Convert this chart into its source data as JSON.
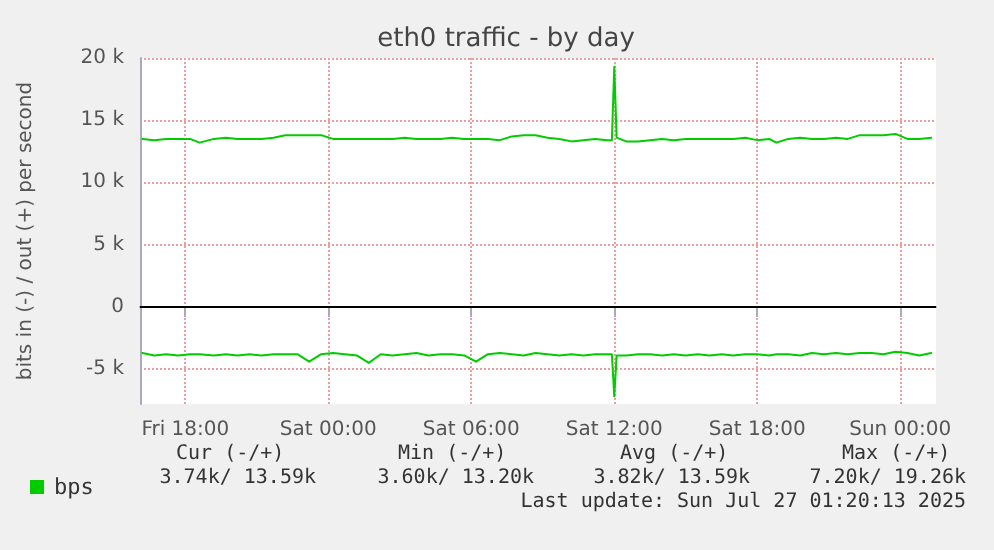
{
  "chart_data": {
    "type": "line",
    "title": "eth0 traffic - by day",
    "ylabel": "bits in (-) / out (+) per second",
    "x": [
      "2025-07-25T16:12",
      "2025-07-25T16:42",
      "2025-07-25T17:12",
      "2025-07-25T17:42",
      "2025-07-25T18:12",
      "2025-07-25T18:36",
      "2025-07-25T19:12",
      "2025-07-25T19:42",
      "2025-07-25T20:12",
      "2025-07-25T20:42",
      "2025-07-25T21:12",
      "2025-07-25T21:42",
      "2025-07-25T22:12",
      "2025-07-25T22:42",
      "2025-07-25T23:12",
      "2025-07-25T23:42",
      "2025-07-26T00:12",
      "2025-07-26T00:42",
      "2025-07-26T01:12",
      "2025-07-26T01:42",
      "2025-07-26T02:12",
      "2025-07-26T02:42",
      "2025-07-26T03:12",
      "2025-07-26T03:42",
      "2025-07-26T04:12",
      "2025-07-26T04:42",
      "2025-07-26T05:12",
      "2025-07-26T05:42",
      "2025-07-26T06:12",
      "2025-07-26T06:42",
      "2025-07-26T07:12",
      "2025-07-26T07:42",
      "2025-07-26T08:12",
      "2025-07-26T08:42",
      "2025-07-26T09:12",
      "2025-07-26T09:42",
      "2025-07-26T10:12",
      "2025-07-26T10:42",
      "2025-07-26T11:12",
      "2025-07-26T11:42",
      "2025-07-26T11:54",
      "2025-07-26T12:00",
      "2025-07-26T12:06",
      "2025-07-26T12:30",
      "2025-07-26T13:00",
      "2025-07-26T13:30",
      "2025-07-26T14:00",
      "2025-07-26T14:30",
      "2025-07-26T15:00",
      "2025-07-26T15:30",
      "2025-07-26T16:00",
      "2025-07-26T16:30",
      "2025-07-26T17:00",
      "2025-07-26T17:30",
      "2025-07-26T18:00",
      "2025-07-26T18:30",
      "2025-07-26T18:48",
      "2025-07-26T19:18",
      "2025-07-26T19:48",
      "2025-07-26T20:18",
      "2025-07-26T20:48",
      "2025-07-26T21:18",
      "2025-07-26T21:48",
      "2025-07-26T22:18",
      "2025-07-26T22:48",
      "2025-07-26T23:18",
      "2025-07-26T23:48",
      "2025-07-27T00:18",
      "2025-07-27T00:48",
      "2025-07-27T01:18"
    ],
    "series": [
      {
        "name": "bps",
        "color": "#00cc00",
        "values": [
          13500,
          13400,
          13500,
          13500,
          13500,
          13200,
          13500,
          13600,
          13500,
          13500,
          13500,
          13600,
          13800,
          13800,
          13800,
          13800,
          13500,
          13500,
          13500,
          13500,
          13500,
          13500,
          13600,
          13500,
          13500,
          13500,
          13600,
          13500,
          13500,
          13500,
          13400,
          13700,
          13800,
          13800,
          13600,
          13500,
          13300,
          13400,
          13500,
          13400,
          13400,
          19300,
          13600,
          13300,
          13300,
          13400,
          13500,
          13400,
          13500,
          13500,
          13500,
          13500,
          13500,
          13600,
          13400,
          13500,
          13200,
          13500,
          13600,
          13500,
          13500,
          13600,
          13500,
          13800,
          13800,
          13800,
          13900,
          13500,
          13500,
          13600
        ]
      },
      {
        "color": "#00cc00",
        "values": [
          -3700,
          -3900,
          -3800,
          -3900,
          -3800,
          -3800,
          -3900,
          -3800,
          -3900,
          -3800,
          -3900,
          -3800,
          -3800,
          -3800,
          -4400,
          -3800,
          -3700,
          -3800,
          -3900,
          -4500,
          -3800,
          -3900,
          -3800,
          -3700,
          -3900,
          -3800,
          -3800,
          -3900,
          -4400,
          -3800,
          -3700,
          -3800,
          -3900,
          -3700,
          -3800,
          -3900,
          -3800,
          -3900,
          -3800,
          -3800,
          -3800,
          -7200,
          -3900,
          -3900,
          -3800,
          -3800,
          -3900,
          -3800,
          -3900,
          -3800,
          -3900,
          -3800,
          -3900,
          -3800,
          -3800,
          -3900,
          -3800,
          -3800,
          -3900,
          -3700,
          -3800,
          -3700,
          -3800,
          -3700,
          -3700,
          -3800,
          -3600,
          -3700,
          -3900,
          -3700
        ]
      }
    ],
    "xlim": [
      "2025-07-25T16:06",
      "2025-07-27T01:30"
    ],
    "xticks": [
      {
        "value": "2025-07-25T18:00",
        "label": "Fri 18:00"
      },
      {
        "value": "2025-07-26T00:00",
        "label": "Sat 00:00"
      },
      {
        "value": "2025-07-26T06:00",
        "label": "Sat 06:00"
      },
      {
        "value": "2025-07-26T12:00",
        "label": "Sat 12:00"
      },
      {
        "value": "2025-07-26T18:00",
        "label": "Sat 18:00"
      },
      {
        "value": "2025-07-27T00:00",
        "label": "Sun 00:00"
      }
    ],
    "ylim": [
      -7800,
      20000
    ],
    "yticks": [
      {
        "value": -5000,
        "label": "-5 k"
      },
      0,
      {
        "value": 5000,
        "label": "5 k"
      },
      {
        "value": 10000,
        "label": "10 k"
      },
      {
        "value": 15000,
        "label": "15 k"
      },
      {
        "value": 20000,
        "label": "20 k"
      }
    ],
    "ref_lines": [
      {
        "axis": "y",
        "value": 0,
        "color": "#000000"
      }
    ],
    "grid": true,
    "legend": "bottom left",
    "marker": "none",
    "line_style": "solid",
    "annotations": [
      "Cur (-/+)",
      "Min (-/+)",
      "Avg (-/+)",
      "Max (-/+)",
      "3.74k/ 13.59k",
      "3.60k/ 13.20k",
      "3.82k/ 13.59k",
      "7.20k/ 19.26k",
      "Last update: Sun Jul 27 01:20:13 2025"
    ]
  }
}
